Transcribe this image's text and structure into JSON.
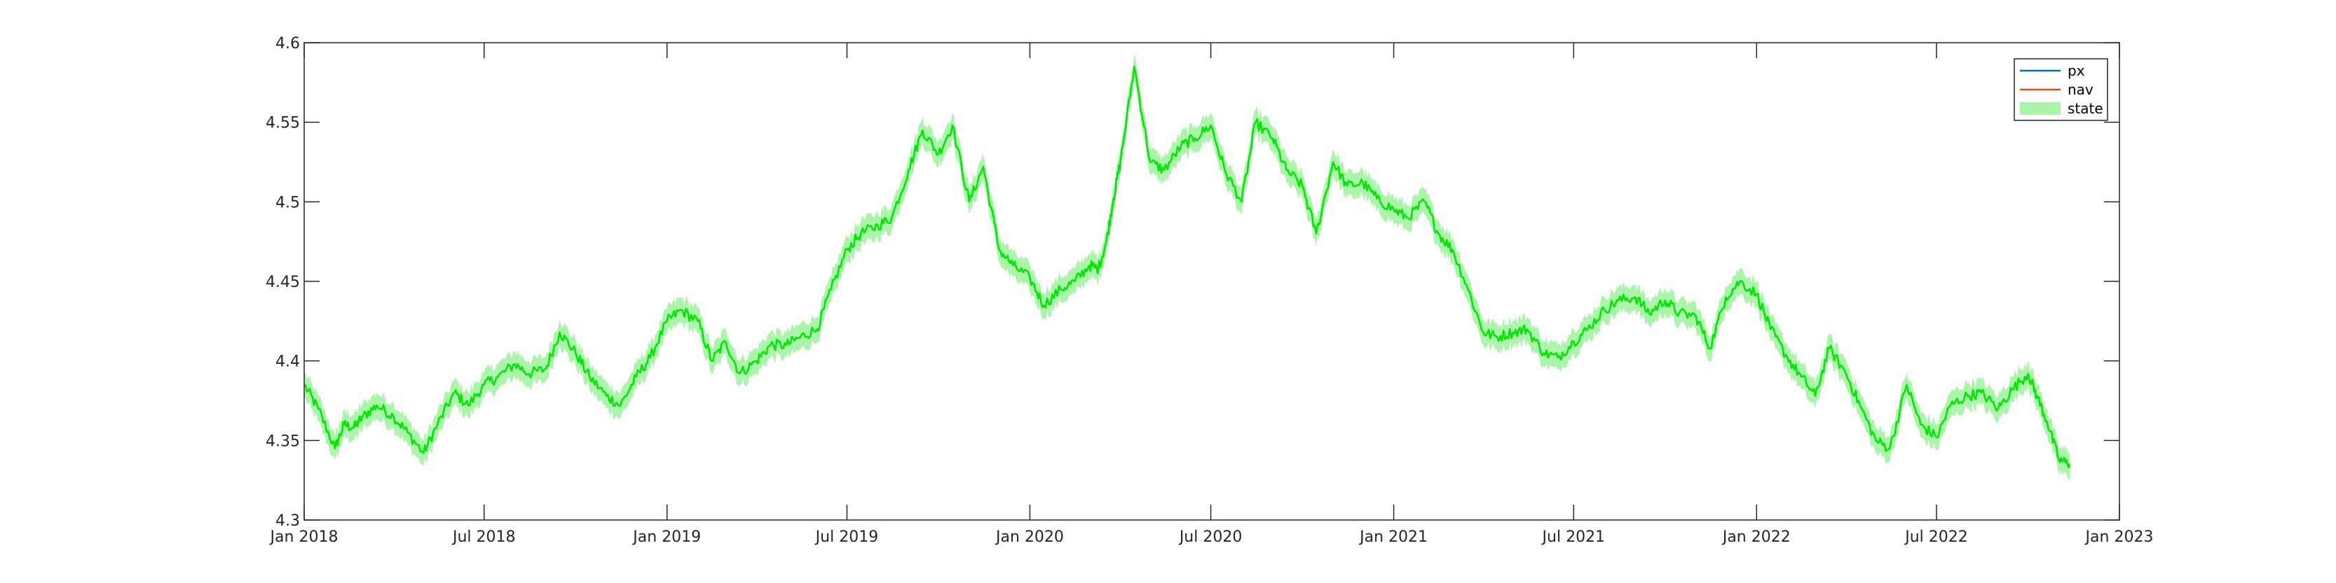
{
  "chart_data": {
    "type": "line",
    "title": "",
    "xlabel": "",
    "ylabel": "",
    "xlim": [
      "2018-01-01",
      "2023-01-01"
    ],
    "ylim": [
      4.3,
      4.6
    ],
    "grid": false,
    "legend_position": "top-right",
    "x_ticks": [
      "Jan 2018",
      "Jul 2018",
      "Jan 2019",
      "Jul 2019",
      "Jan 2020",
      "Jul 2020",
      "Jan 2021",
      "Jul 2021",
      "Jan 2022",
      "Jul 2022",
      "Jan 2023"
    ],
    "x_tick_dates": [
      "2018-01-01",
      "2018-07-01",
      "2019-01-01",
      "2019-07-01",
      "2020-01-01",
      "2020-07-01",
      "2021-01-01",
      "2021-07-01",
      "2022-01-01",
      "2022-07-01",
      "2023-01-01"
    ],
    "y_ticks": [
      "4.3",
      "4.35",
      "4.4",
      "4.45",
      "4.5",
      "4.55",
      "4.6"
    ],
    "y_tick_values": [
      4.3,
      4.35,
      4.4,
      4.45,
      4.5,
      4.55,
      4.6
    ],
    "series": [
      {
        "name": "px",
        "color": "#0072BD",
        "kind": "line",
        "visible_in_plot": false
      },
      {
        "name": "nav",
        "color": "#D95319",
        "kind": "line",
        "visible_in_plot": false
      },
      {
        "name": "state",
        "color": "#00E600",
        "band_color": "#AAF5AA",
        "kind": "line-with-band",
        "band_halfwidth": 0.008,
        "dates": [
          "2018-01-01",
          "2018-01-15",
          "2018-02-01",
          "2018-02-10",
          "2018-02-20",
          "2018-03-01",
          "2018-03-15",
          "2018-04-01",
          "2018-04-15",
          "2018-05-01",
          "2018-05-15",
          "2018-06-01",
          "2018-06-15",
          "2018-07-01",
          "2018-07-15",
          "2018-08-01",
          "2018-08-15",
          "2018-09-01",
          "2018-09-15",
          "2018-10-01",
          "2018-10-15",
          "2018-11-01",
          "2018-11-15",
          "2018-12-01",
          "2018-12-15",
          "2019-01-01",
          "2019-01-15",
          "2019-02-01",
          "2019-02-15",
          "2019-03-01",
          "2019-03-15",
          "2019-04-01",
          "2019-04-15",
          "2019-05-01",
          "2019-05-15",
          "2019-06-01",
          "2019-06-15",
          "2019-07-01",
          "2019-07-15",
          "2019-08-01",
          "2019-08-15",
          "2019-09-01",
          "2019-09-15",
          "2019-10-01",
          "2019-10-15",
          "2019-11-01",
          "2019-11-15",
          "2019-12-01",
          "2019-12-15",
          "2020-01-01",
          "2020-01-15",
          "2020-02-01",
          "2020-02-15",
          "2020-03-01",
          "2020-03-10",
          "2020-03-18",
          "2020-03-25",
          "2020-04-01",
          "2020-04-15",
          "2020-05-01",
          "2020-05-15",
          "2020-06-01",
          "2020-06-15",
          "2020-07-01",
          "2020-07-15",
          "2020-08-01",
          "2020-08-15",
          "2020-09-01",
          "2020-09-15",
          "2020-10-01",
          "2020-10-15",
          "2020-11-01",
          "2020-11-15",
          "2020-12-01",
          "2020-12-15",
          "2021-01-01",
          "2021-01-15",
          "2021-02-01",
          "2021-02-15",
          "2021-03-01",
          "2021-03-15",
          "2021-04-01",
          "2021-04-15",
          "2021-05-01",
          "2021-05-15",
          "2021-06-01",
          "2021-06-15",
          "2021-07-01",
          "2021-07-15",
          "2021-08-01",
          "2021-08-15",
          "2021-09-01",
          "2021-09-15",
          "2021-10-01",
          "2021-10-15",
          "2021-11-01",
          "2021-11-15",
          "2021-12-01",
          "2021-12-15",
          "2022-01-01",
          "2022-01-15",
          "2022-02-01",
          "2022-02-15",
          "2022-03-01",
          "2022-03-15",
          "2022-04-01",
          "2022-04-15",
          "2022-05-01",
          "2022-05-15",
          "2022-06-01",
          "2022-06-15",
          "2022-07-01",
          "2022-07-15",
          "2022-08-01",
          "2022-08-15",
          "2022-09-01",
          "2022-09-15",
          "2022-10-01",
          "2022-10-10",
          "2022-10-20",
          "2022-11-01",
          "2022-11-12"
        ],
        "values": [
          4.385,
          4.37,
          4.345,
          4.36,
          4.358,
          4.365,
          4.372,
          4.365,
          4.355,
          4.342,
          4.36,
          4.38,
          4.372,
          4.385,
          4.39,
          4.398,
          4.392,
          4.395,
          4.418,
          4.405,
          4.39,
          4.378,
          4.372,
          4.39,
          4.402,
          4.425,
          4.432,
          4.425,
          4.4,
          4.412,
          4.392,
          4.4,
          4.41,
          4.41,
          4.415,
          4.42,
          4.445,
          4.47,
          4.48,
          4.485,
          4.49,
          4.52,
          4.545,
          4.53,
          4.548,
          4.5,
          4.522,
          4.47,
          4.46,
          4.452,
          4.435,
          4.445,
          4.45,
          4.46,
          4.458,
          4.475,
          4.502,
          4.525,
          4.585,
          4.525,
          4.52,
          4.535,
          4.54,
          4.548,
          4.52,
          4.5,
          4.55,
          4.54,
          4.52,
          4.51,
          4.48,
          4.525,
          4.51,
          4.512,
          4.502,
          4.495,
          4.49,
          4.5,
          4.48,
          4.47,
          4.448,
          4.418,
          4.415,
          4.418,
          4.42,
          4.405,
          4.402,
          4.412,
          4.42,
          4.432,
          4.438,
          4.44,
          4.43,
          4.438,
          4.43,
          4.428,
          4.408,
          4.44,
          4.45,
          4.442,
          4.42,
          4.402,
          4.39,
          4.378,
          4.408,
          4.392,
          4.372,
          4.35,
          4.345,
          4.385,
          4.36,
          4.352,
          4.372,
          4.378,
          4.38,
          4.37,
          4.382,
          4.392,
          4.378,
          4.362,
          4.338,
          4.335
        ]
      }
    ]
  },
  "legend": {
    "items": [
      {
        "label": "px",
        "color": "#0072BD",
        "swatch": "line"
      },
      {
        "label": "nav",
        "color": "#D95319",
        "swatch": "line"
      },
      {
        "label": "state",
        "color": "#AAF5AA",
        "swatch": "patch"
      }
    ]
  }
}
